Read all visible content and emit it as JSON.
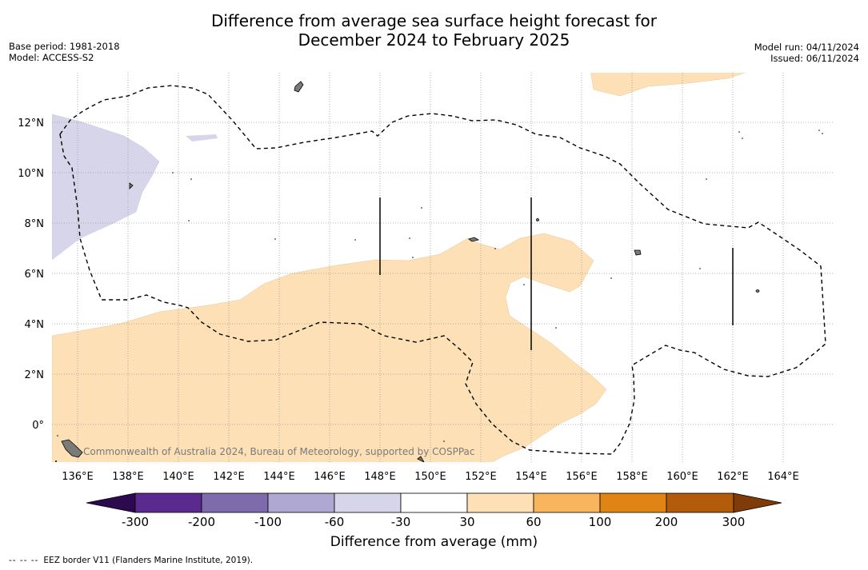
{
  "title_line1": "Difference from average sea surface height forecast for",
  "title_line2": "December 2024 to February 2025",
  "base_period": "Base period: 1981-2018",
  "model": "Model: ACCESS-S2",
  "model_run": "Model run: 04/11/2024",
  "issued": "Issued: 06/11/2024",
  "x_ticks": [
    "136°E",
    "138°E",
    "140°E",
    "142°E",
    "144°E",
    "146°E",
    "148°E",
    "150°E",
    "152°E",
    "154°E",
    "156°E",
    "158°E",
    "160°E",
    "162°E",
    "164°E"
  ],
  "y_ticks": [
    "12°N",
    "10°N",
    "8°N",
    "6°N",
    "4°N",
    "2°N",
    "0°"
  ],
  "colorbar": {
    "label": "Difference from average (mm)",
    "ticks": [
      "-300",
      "-200",
      "-100",
      "-60",
      "-30",
      "30",
      "60",
      "100",
      "200",
      "300"
    ],
    "colors": [
      "#5a2a8e",
      "#7d6bab",
      "#aea8d2",
      "#d6d5ea",
      "#ffffff",
      "#fde0b6",
      "#f8b55e",
      "#e08515",
      "#b25b0b"
    ],
    "low_extend_color": "#2d0a4f",
    "high_extend_color": "#7f3b08"
  },
  "watermark": "Commonwealth of Australia 2024, Bureau of Meteorology, supported by COSPPac",
  "legend_dash": "-- -- --",
  "legend_text": "EEZ border V11 (Flanders Marine Institute, 2019)."
}
